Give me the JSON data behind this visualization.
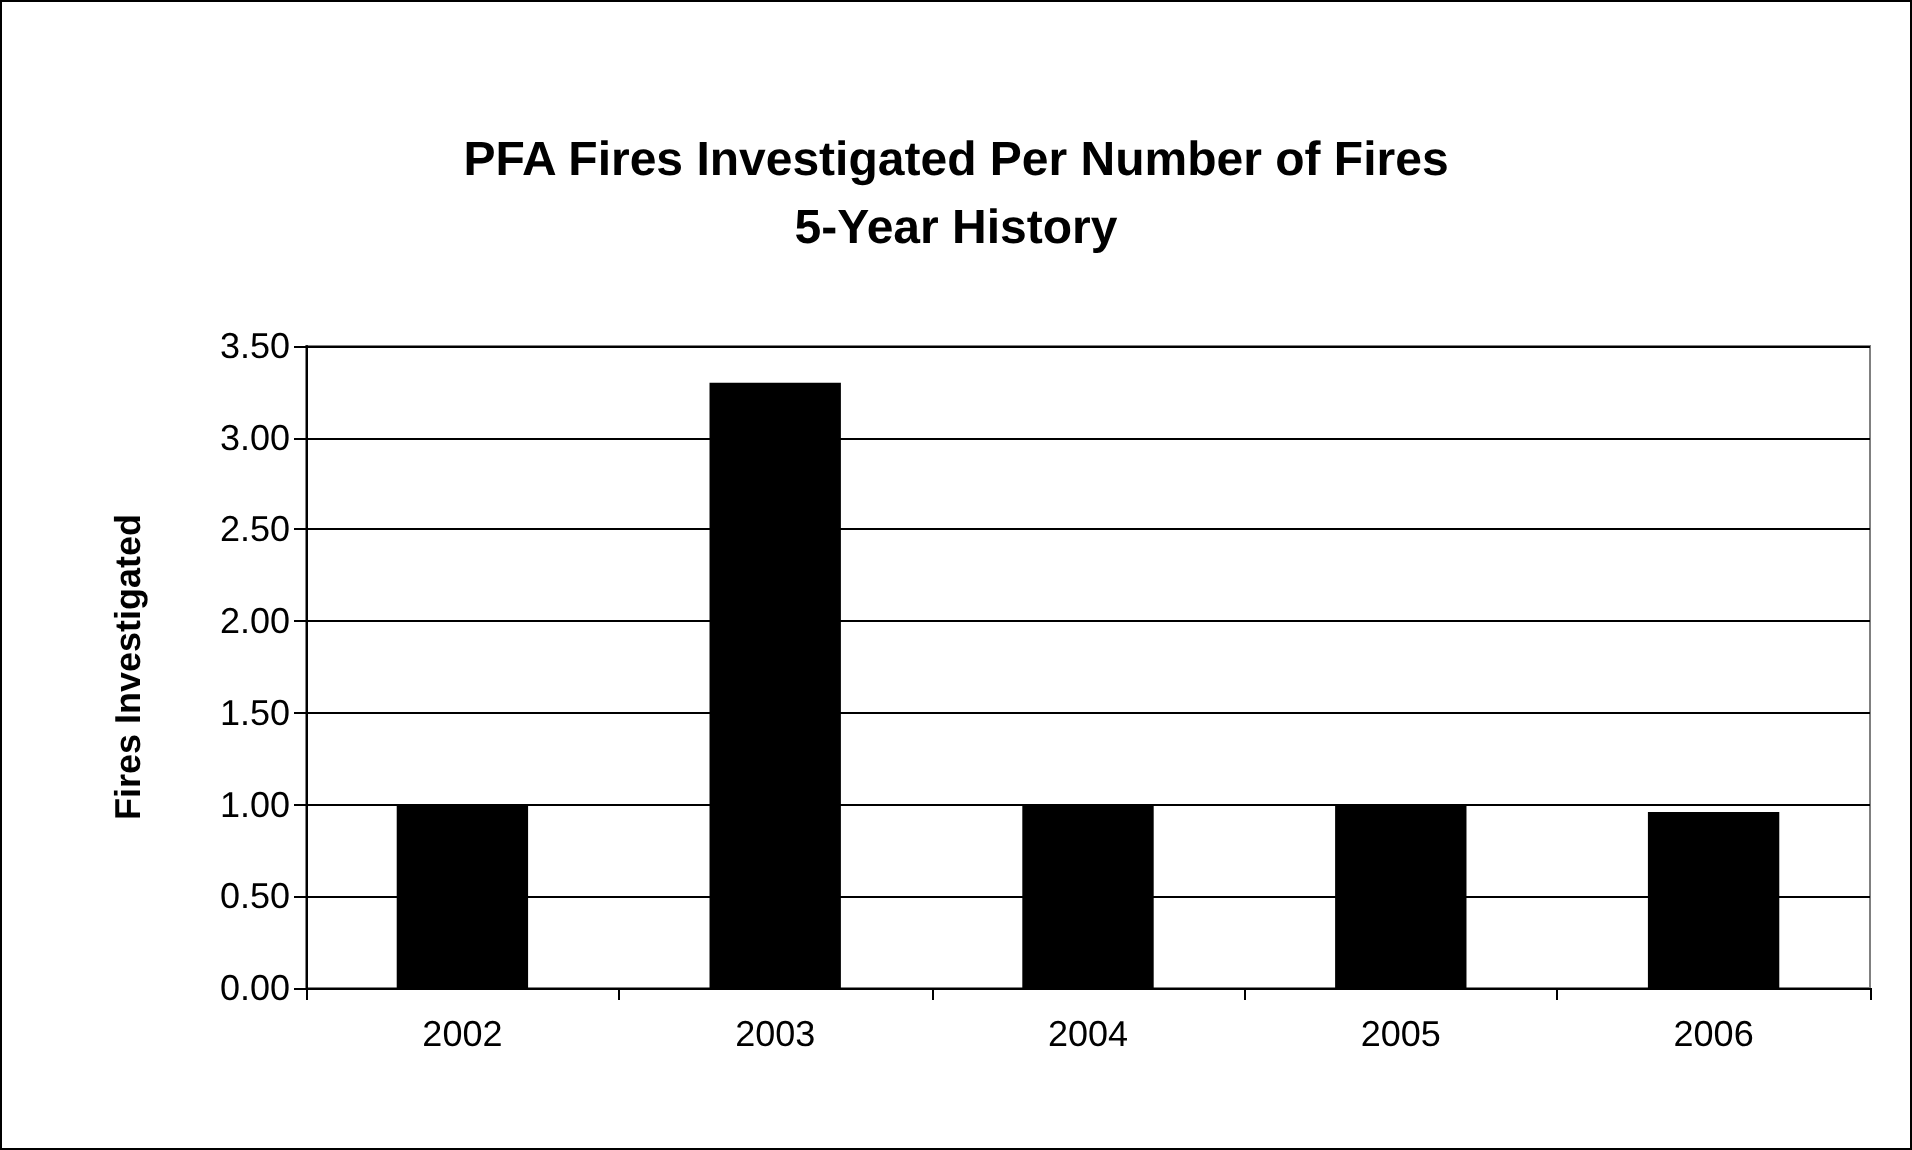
{
  "chart_data": {
    "type": "bar",
    "title": "PFA Fires Investigated Per Number of Fires",
    "subtitle": "5-Year History",
    "ylabel": "Fires Investigated",
    "categories": [
      "2002",
      "2003",
      "2004",
      "2005",
      "2006"
    ],
    "values": [
      1.0,
      3.3,
      1.0,
      1.0,
      0.96
    ],
    "color": "#000000",
    "ylim": [
      0,
      3.5
    ],
    "yticks": [
      {
        "value": 0,
        "label": "0.00"
      },
      {
        "value": 0.5,
        "label": "0.50"
      },
      {
        "value": 1,
        "label": "1.00"
      },
      {
        "value": 1.5,
        "label": "1.50"
      },
      {
        "value": 2,
        "label": "2.00"
      },
      {
        "value": 2.5,
        "label": "2.50"
      },
      {
        "value": 3,
        "label": "3.00"
      },
      {
        "value": 3.5,
        "label": "3.50"
      }
    ],
    "grid": "y"
  }
}
